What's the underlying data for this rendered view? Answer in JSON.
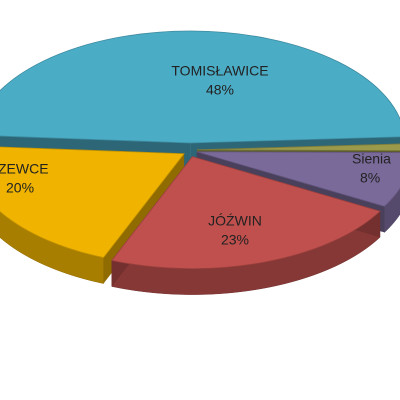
{
  "chart_data": {
    "type": "pie3d",
    "categories": [
      "TOMISŁAWICE",
      null,
      "Sienia",
      "JÓŹWIN",
      "ZEWCE"
    ],
    "values": [
      48,
      1,
      8,
      23,
      20
    ],
    "value_labels": [
      "48%",
      null,
      "8%",
      "23%",
      "20%"
    ],
    "colors": [
      "#4bacc6",
      "#9a9a4a",
      "#7a6a9a",
      "#c0504d",
      "#f0b400"
    ]
  }
}
